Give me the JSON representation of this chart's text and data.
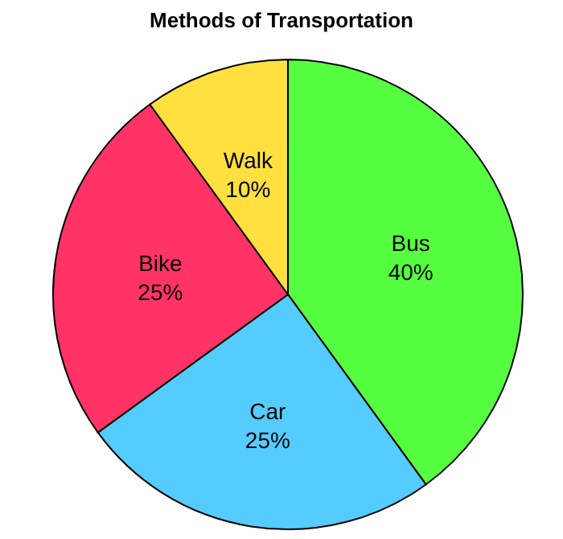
{
  "chart_data": {
    "type": "pie",
    "title": "Methods of Transportation",
    "categories": [
      "Bus",
      "Car",
      "Bike",
      "Walk"
    ],
    "values": [
      40,
      25,
      25,
      10
    ],
    "value_labels": [
      "40%",
      "25%",
      "25%",
      "10%"
    ],
    "colors": [
      "#55ff3f",
      "#55ccff",
      "#ff3366",
      "#ffe03f"
    ]
  }
}
